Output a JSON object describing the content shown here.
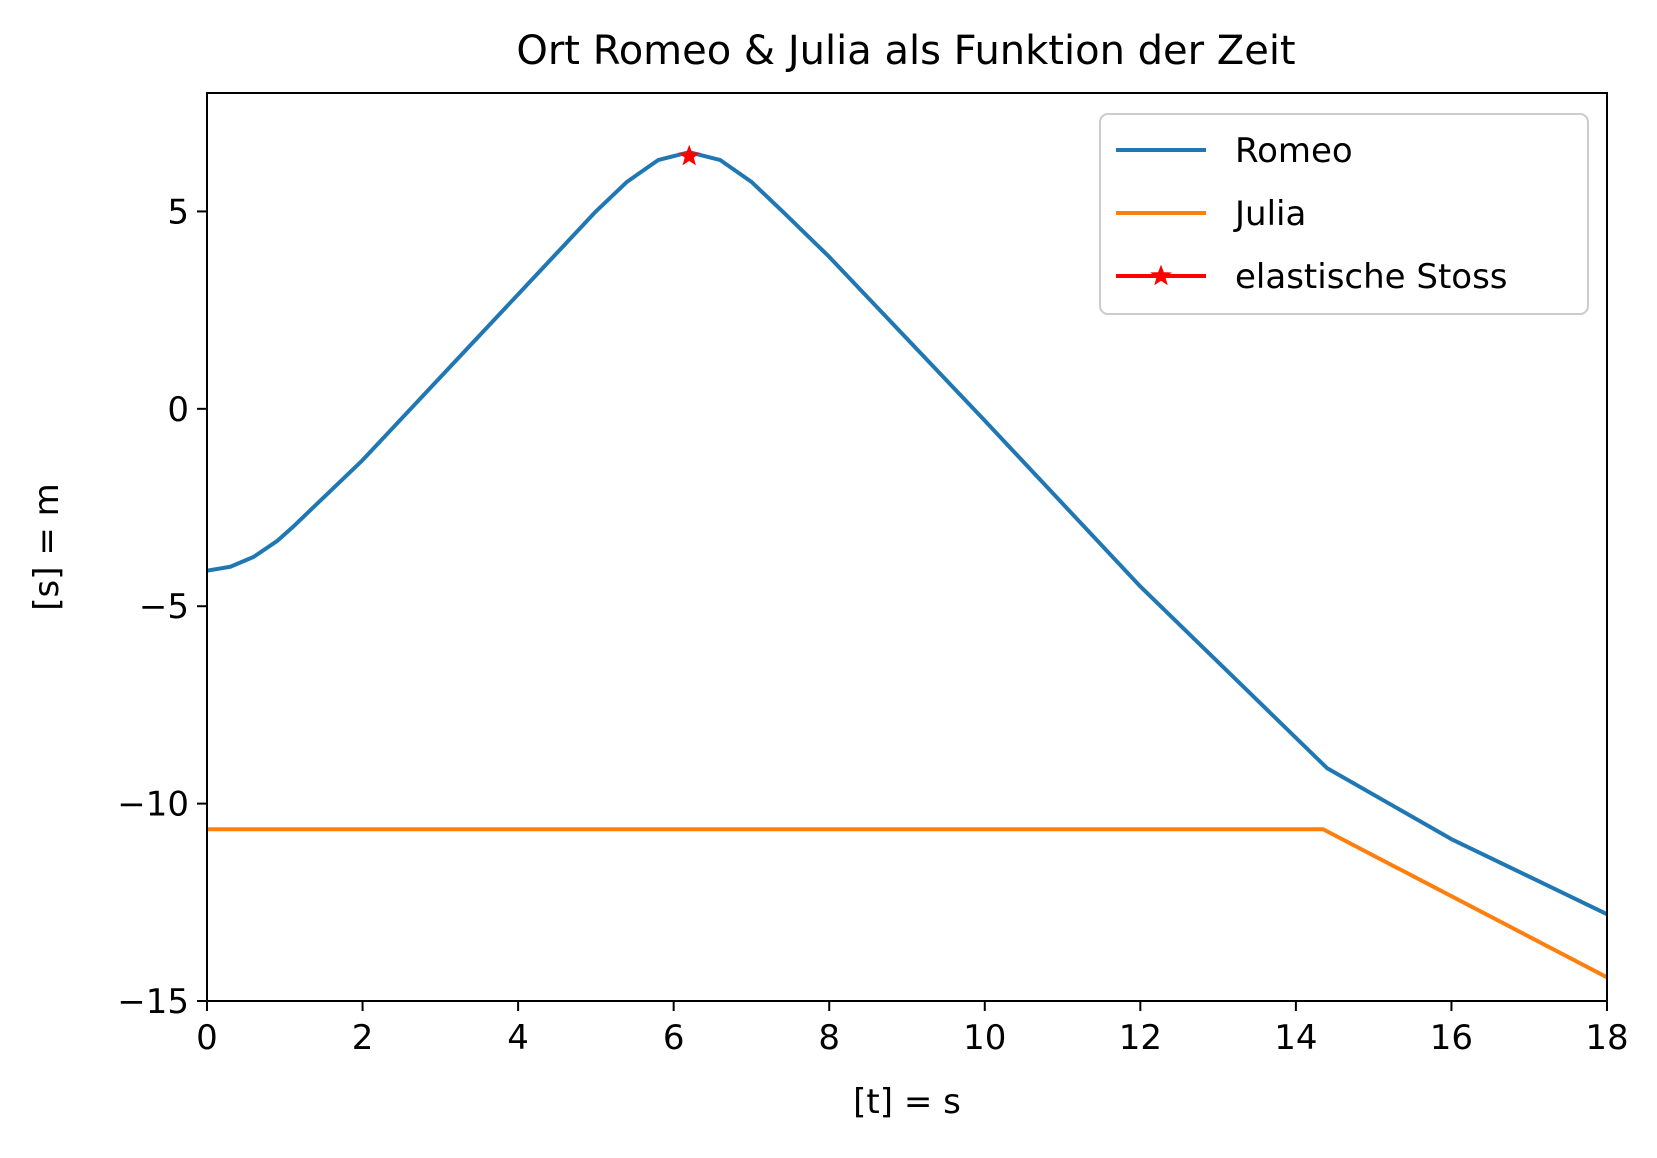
{
  "chart_data": {
    "type": "line",
    "title": "Ort Romeo & Julia als Funktion der Zeit",
    "xlabel": "[t] = s",
    "ylabel": "[s] = m",
    "xlim": [
      0,
      18
    ],
    "ylim": [
      -15,
      8
    ],
    "x_ticks": [
      0,
      2,
      4,
      6,
      8,
      10,
      12,
      14,
      16,
      18
    ],
    "x_tick_labels": [
      "0",
      "2",
      "4",
      "6",
      "8",
      "10",
      "12",
      "14",
      "16",
      "18"
    ],
    "y_ticks": [
      -15,
      -10,
      -5,
      0,
      5
    ],
    "y_tick_labels": [
      "−15",
      "−10",
      "−5",
      "0",
      "5"
    ],
    "grid": false,
    "legend": "top-right",
    "series": [
      {
        "name": "Romeo",
        "color": "#1f77b4",
        "x": [
          0,
          0.3,
          0.6,
          0.9,
          1.1,
          2,
          3,
          4,
          5,
          5.4,
          5.8,
          6.2,
          6.6,
          7.0,
          7.4,
          8,
          10,
          12,
          14.4,
          16,
          18
        ],
        "y": [
          -4.1,
          -4.0,
          -3.75,
          -3.35,
          -3.0,
          -1.3,
          0.8,
          2.9,
          5.0,
          5.75,
          6.3,
          6.5,
          6.3,
          5.75,
          5.0,
          3.85,
          -0.3,
          -4.5,
          -9.1,
          -10.9,
          -12.8
        ]
      },
      {
        "name": "Julia",
        "color": "#ff7f0e",
        "x": [
          0,
          14.35,
          18
        ],
        "y": [
          -10.65,
          -10.65,
          -14.4
        ]
      },
      {
        "name": "elastische Stoss",
        "color": "#ff0000",
        "marker": "star",
        "x": [
          6.2
        ],
        "y": [
          6.4
        ]
      }
    ]
  }
}
